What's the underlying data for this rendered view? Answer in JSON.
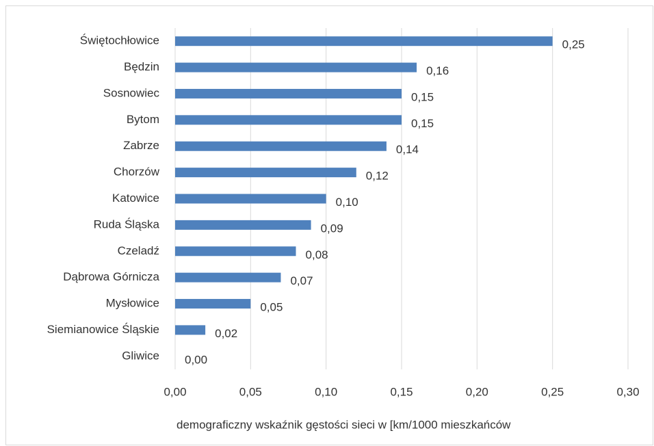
{
  "chart_data": {
    "type": "barh",
    "x_label": "demograficzny wskaźnik gęstości sieci w [km/1000 mieszkańców",
    "categories": [
      "Świętochłowice",
      "Będzin",
      "Sosnowiec",
      "Bytom",
      "Zabrze",
      "Chorzów",
      "Katowice",
      "Ruda Śląska",
      "Czeladź",
      "Dąbrowa Górnicza",
      "Mysłowice",
      "Siemianowice Śląskie",
      "Gliwice"
    ],
    "values": [
      0.25,
      0.16,
      0.15,
      0.15,
      0.14,
      0.12,
      0.1,
      0.09,
      0.08,
      0.07,
      0.05,
      0.02,
      0.0
    ],
    "value_labels": [
      "0,25",
      "0,16",
      "0,15",
      "0,15",
      "0,14",
      "0,12",
      "0,10",
      "0,09",
      "0,08",
      "0,07",
      "0,05",
      "0,02",
      "0,00"
    ],
    "color": "#4f81bd",
    "xlim": [
      0,
      0.3
    ],
    "xticks": [
      {
        "value": 0,
        "label": "0,00"
      },
      {
        "value": 0.05,
        "label": "0,05"
      },
      {
        "value": 0.1,
        "label": "0,10"
      },
      {
        "value": 0.15,
        "label": "0,15"
      },
      {
        "value": 0.2,
        "label": "0,20"
      },
      {
        "value": 0.25,
        "label": "0,25"
      },
      {
        "value": 0.3,
        "label": "0,30"
      }
    ],
    "grid": true
  }
}
